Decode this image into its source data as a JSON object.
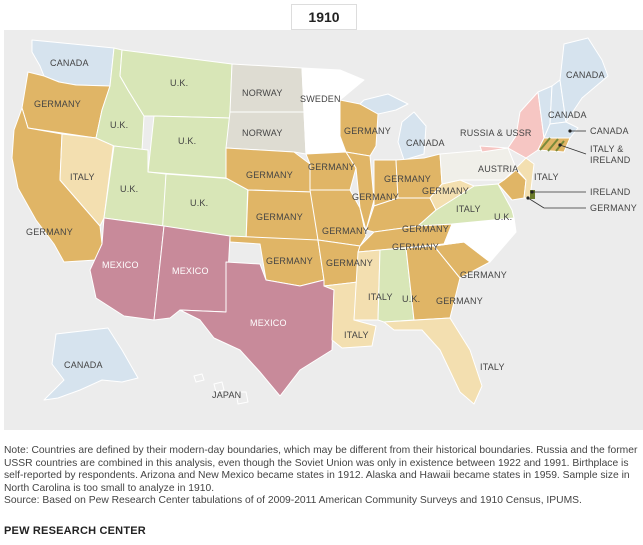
{
  "title": "1910",
  "colors": {
    "germany": "#e0b566",
    "uk": "#d8e6b7",
    "canada": "#d6e3ee",
    "norway": "#dedcd2",
    "sweden": "#ffffff",
    "mexico": "#c88a9a",
    "italy": "#f3dfb0",
    "russia_ussr": "#f6c6c3",
    "austria": "#f0efe9",
    "japan": "#ececec",
    "water": "#ececec"
  },
  "labels": {
    "canada_ak": "CANADA",
    "canada_me": "CANADA",
    "canada_vt": "CANADA",
    "canada_ma": "CANADA",
    "canada_mi": "CANADA",
    "canada_wa": "CANADA",
    "germany_or": "GERMANY",
    "germany_ca": "GERMANY",
    "germany_ne": "GERMANY",
    "germany_ks": "GERMANY",
    "germany_ok": "GERMANY",
    "germany_ia": "GERMANY",
    "germany_mo": "GERMANY",
    "germany_ar": "GERMANY",
    "germany_wi": "GERMANY",
    "germany_il": "GERMANY",
    "germany_in": "GERMANY",
    "germany_oh": "GERMANY",
    "germany_ky": "GERMANY",
    "germany_tn": "GERMANY",
    "germany_ga": "GERMANY",
    "germany_sc": "GERMANY",
    "germany_md": "GERMANY",
    "uk_mt": "U.K.",
    "uk_id": "U.K.",
    "uk_wy": "U.K.",
    "uk_ut": "U.K.",
    "uk_co": "U.K.",
    "uk_va": "U.K.",
    "uk_al": "U.K.",
    "norway_nd": "NORWAY",
    "norway_sd": "NORWAY",
    "sweden_mn": "SWEDEN",
    "italy_nv": "ITALY",
    "italy_wv": "ITALY",
    "italy_nj": "ITALY",
    "italy_ms": "ITALY",
    "italy_la": "ITALY",
    "italy_fl": "ITALY",
    "mexico_az": "MEXICO",
    "mexico_nm": "MEXICO",
    "mexico_tx": "MEXICO",
    "austria_pa": "AUSTRIA",
    "russia_ny": "RUSSIA & USSR",
    "italy_ireland": "ITALY &\nIRELAND",
    "ireland": "IRELAND",
    "japan_hi": "JAPAN"
  },
  "note": "Note: Countries are defined by their modern-day boundaries, which may be different from their historical boundaries. Russia and the former USSR countries are combined in this analysis, even though the Soviet Union was only in existence between 1922 and 1991. Birthplace is self-reported by respondents. Arizona and New Mexico became states in 1912. Alaska and Hawaii became states in 1959. Sample size in North Carolina is too small to analyze in 1910.",
  "source": "Source: Based on Pew Research Center tabulations of of 2009-2011 American Community Surveys and 1910 Census, IPUMS.",
  "brand": "PEW RESEARCH CENTER"
}
